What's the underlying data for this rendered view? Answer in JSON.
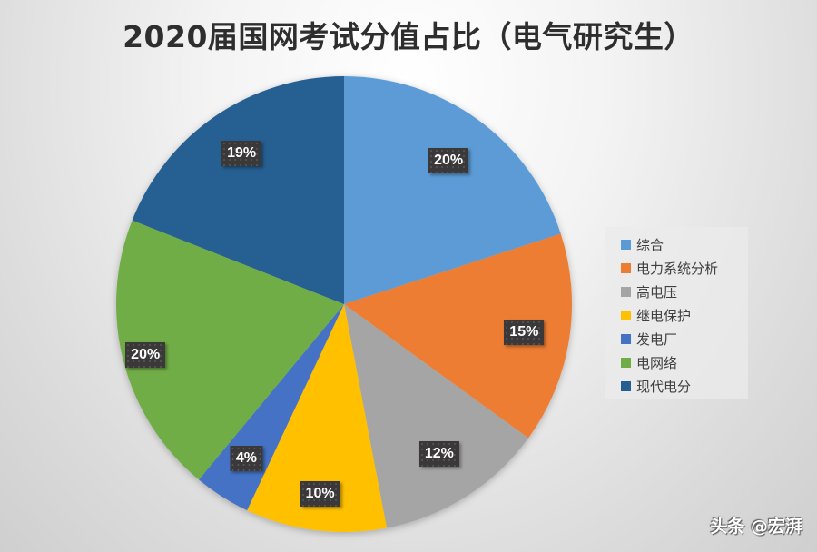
{
  "header": {
    "title": "2020届国网考试分值占比（电气研究生）"
  },
  "chart_data": {
    "type": "pie",
    "title": "2020届国网考试分值占比（电气研究生）",
    "categories": [
      "综合",
      "电力系统分析",
      "高电压",
      "继电保护",
      "发电厂",
      "电网络",
      "现代电分"
    ],
    "values": [
      20,
      15,
      12,
      10,
      4,
      20,
      19
    ],
    "unit": "%",
    "colors": [
      "#5B9BD5",
      "#ED7D31",
      "#A5A5A5",
      "#FFC000",
      "#4472C4",
      "#70AD47",
      "#255E91"
    ],
    "data_labels": [
      "20%",
      "15%",
      "12%",
      "10%",
      "4%",
      "20%",
      "19%"
    ],
    "start_angle": "12 o'clock",
    "direction": "clockwise",
    "legend_position": "right"
  },
  "legend": {
    "items": [
      {
        "label": "综合",
        "color": "#5B9BD5"
      },
      {
        "label": "电力系统分析",
        "color": "#ED7D31"
      },
      {
        "label": "高电压",
        "color": "#A5A5A5"
      },
      {
        "label": "继电保护",
        "color": "#FFC000"
      },
      {
        "label": "发电厂",
        "color": "#4472C4"
      },
      {
        "label": "电网络",
        "color": "#70AD47"
      },
      {
        "label": "现代电分",
        "color": "#255E91"
      }
    ]
  },
  "watermark": {
    "text": "头条 @宏湃"
  }
}
